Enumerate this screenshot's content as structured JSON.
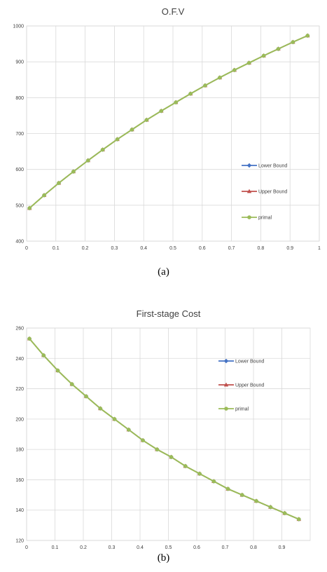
{
  "chart_data": [
    {
      "type": "line",
      "title": "O.F.V",
      "caption": "(a)",
      "xlabel": "",
      "ylabel": "",
      "xlim": [
        0,
        1
      ],
      "ylim": [
        400,
        1000
      ],
      "xticks": [
        "0",
        "0.1",
        "0.2",
        "0.3",
        "0.4",
        "0.5",
        "0.6",
        "0.7",
        "0.8",
        "0.9",
        "1"
      ],
      "yticks": [
        "400",
        "500",
        "600",
        "700",
        "800",
        "900",
        "1000"
      ],
      "grid": true,
      "legend_position": "right",
      "x": [
        0.01,
        0.06,
        0.11,
        0.16,
        0.21,
        0.26,
        0.31,
        0.36,
        0.41,
        0.46,
        0.51,
        0.56,
        0.61,
        0.66,
        0.71,
        0.76,
        0.81,
        0.86,
        0.91,
        0.96
      ],
      "series": [
        {
          "name": "Lower Bound",
          "color": "#4472c4",
          "marker": "diamond",
          "values": [
            492,
            528,
            562,
            594,
            625,
            655,
            684,
            711,
            738,
            763,
            787,
            811,
            834,
            856,
            877,
            897,
            917,
            936,
            955,
            973
          ]
        },
        {
          "name": "Upper Bound",
          "color": "#c0504d",
          "marker": "triangle",
          "values": [
            492,
            528,
            562,
            594,
            625,
            655,
            684,
            711,
            738,
            763,
            787,
            811,
            834,
            856,
            877,
            897,
            917,
            936,
            955,
            973
          ]
        },
        {
          "name": "primal",
          "color": "#9bbb59",
          "marker": "circle",
          "values": [
            492,
            528,
            562,
            594,
            625,
            655,
            684,
            711,
            738,
            763,
            787,
            811,
            834,
            856,
            877,
            897,
            917,
            936,
            955,
            973
          ]
        }
      ]
    },
    {
      "type": "line",
      "title": "First-stage Cost",
      "caption": "(b)",
      "xlabel": "",
      "ylabel": "",
      "xlim": [
        0,
        1
      ],
      "ylim": [
        120,
        260
      ],
      "xticks": [
        "0",
        "0.1",
        "0.2",
        "0.3",
        "0.4",
        "0.5",
        "0.6",
        "0.7",
        "0.8",
        "0.9"
      ],
      "yticks": [
        "120",
        "140",
        "160",
        "180",
        "200",
        "220",
        "240",
        "260"
      ],
      "grid": true,
      "legend_position": "top-right",
      "x": [
        0.01,
        0.06,
        0.11,
        0.16,
        0.21,
        0.26,
        0.31,
        0.36,
        0.41,
        0.46,
        0.51,
        0.56,
        0.61,
        0.66,
        0.71,
        0.76,
        0.81,
        0.86,
        0.91,
        0.96
      ],
      "series": [
        {
          "name": "Lower Bound",
          "color": "#4472c4",
          "marker": "diamond",
          "values": [
            253,
            242,
            232,
            223,
            215,
            207,
            200,
            193,
            186,
            180,
            175,
            169,
            164,
            159,
            154,
            150,
            146,
            142,
            138,
            134
          ]
        },
        {
          "name": "Upper Bound",
          "color": "#c0504d",
          "marker": "triangle",
          "values": [
            253,
            242,
            232,
            223,
            215,
            207,
            200,
            193,
            186,
            180,
            175,
            169,
            164,
            159,
            154,
            150,
            146,
            142,
            138,
            134
          ]
        },
        {
          "name": "primal",
          "color": "#9bbb59",
          "marker": "circle",
          "values": [
            253,
            242,
            232,
            223,
            215,
            207,
            200,
            193,
            186,
            180,
            175,
            169,
            164,
            159,
            154,
            150,
            146,
            142,
            138,
            134
          ]
        }
      ]
    }
  ]
}
